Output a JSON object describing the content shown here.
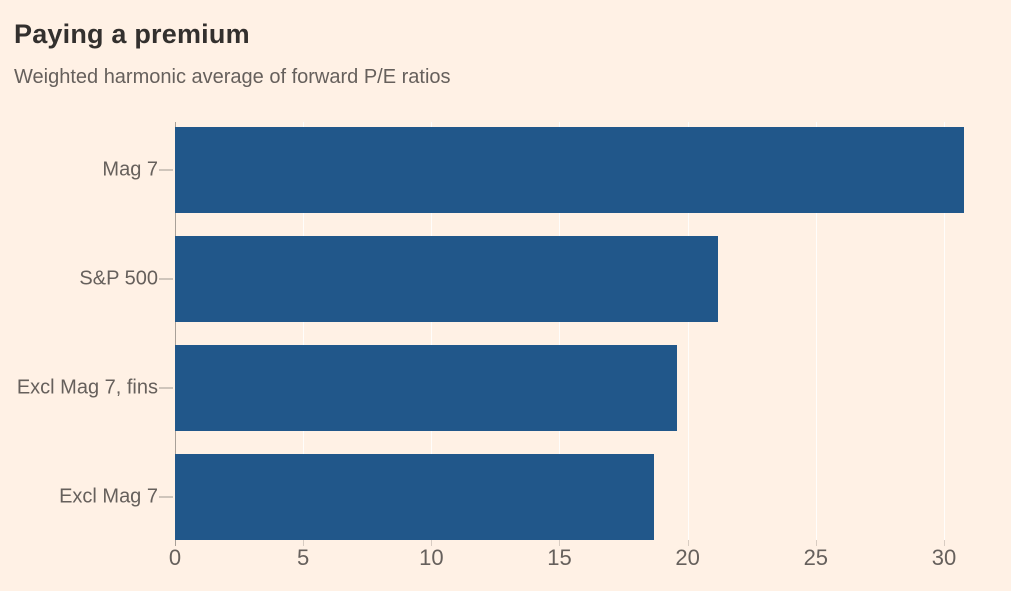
{
  "header": {
    "title": "Paying a premium",
    "subtitle": "Weighted harmonic average of forward P/E ratios"
  },
  "chart_data": {
    "type": "bar",
    "orientation": "horizontal",
    "title": "Paying a premium",
    "subtitle": "Weighted harmonic average of forward P/E ratios",
    "categories": [
      "Mag 7",
      "S&P 500",
      "Excl Mag 7, fins",
      "Excl Mag 7"
    ],
    "values": [
      30.8,
      21.2,
      19.6,
      18.7
    ],
    "xlabel": "",
    "ylabel": "",
    "xlim": [
      0,
      31.6
    ],
    "x_ticks": [
      0,
      5,
      10,
      15,
      20,
      25,
      30
    ],
    "grid": true,
    "legend": false
  },
  "palette": {
    "background": "#FFF1E5",
    "bar": "#21578A",
    "title_text": "#33302E",
    "muted_text": "#66605C",
    "axis_line": "#A8A098",
    "gridline": "rgba(255,255,255,0.85)",
    "label_dash": "#CFC5BB",
    "tick_mark": "#D8CCC2"
  }
}
